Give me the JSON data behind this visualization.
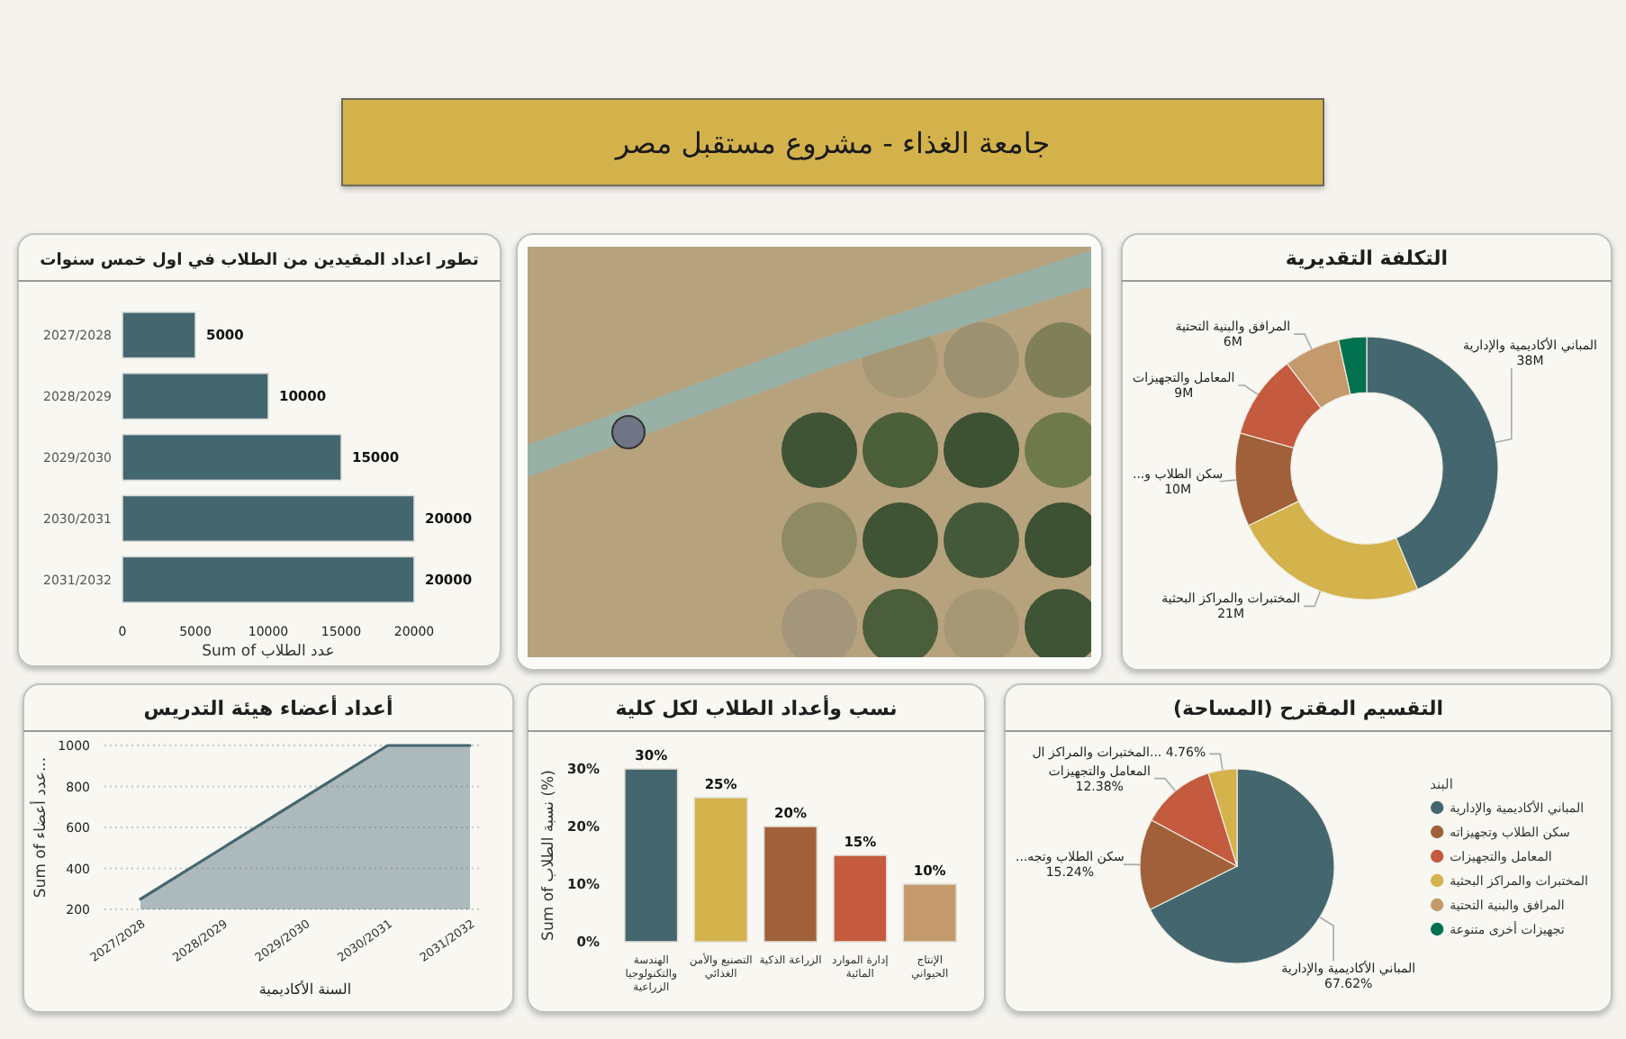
{
  "chart_data": [
    {
      "type": "other",
      "title": "جامعة الغذاء - مشروع مستقبل مصر"
    },
    {
      "type": "bar",
      "orientation": "horizontal",
      "title": "تطور اعداد المقيدين من الطلاب في اول خمس سنوات",
      "categories": [
        "2027/2028",
        "2028/2029",
        "2029/2030",
        "2030/2031",
        "2031/2032"
      ],
      "values": [
        5000,
        10000,
        15000,
        20000,
        20000
      ],
      "color": "#44676f",
      "xlim": [
        0,
        20000
      ],
      "xticks": [
        0,
        5000,
        10000,
        15000,
        20000
      ],
      "xlabel": "Sum of عدد الطلاب",
      "data_labels": true
    },
    {
      "type": "donut",
      "title": "التكلفة التقديرية",
      "categories": [
        "المباني الأكاديمية والإدارية",
        "المختبرات والمراكز البحثية",
        "سكن الطلاب و...",
        "المعامل والتجهيزات",
        "المرافق والبنية التحتية",
        null
      ],
      "values": [
        38,
        21,
        10,
        9,
        6,
        3
      ],
      "colors": [
        "#44676f",
        "#d4b24c",
        "#a0603a",
        "#c45a3e",
        "#c49a6c",
        "#00704f"
      ],
      "value_labels": [
        "38M",
        "21M",
        "10M",
        "9M",
        "6M",
        null
      ]
    },
    {
      "type": "area",
      "title": "أعداد أعضاء هيئة التدريس",
      "categories": [
        "2027/2028",
        "2028/2029",
        "2029/2030",
        "2030/2031",
        "2031/2032"
      ],
      "values": [
        250,
        500,
        750,
        1000,
        1000
      ],
      "color": "#44676f",
      "ylim": [
        200,
        1000
      ],
      "yticks": [
        200,
        400,
        600,
        800,
        1000
      ],
      "xlabel": "السنة الأكاديمية",
      "ylabel": "Sum of عدد أعضاء...",
      "grid": "y"
    },
    {
      "type": "bar",
      "title": "نسب وأعداد الطلاب لكل كلية",
      "categories": [
        "الهندسة والتكنولوجيا الزراعية",
        "التصنيع والأمن الغذائي",
        "الزراعة الذكية",
        "إدارة الموارد المائية",
        "الإنتاج الحيواني"
      ],
      "values": [
        30,
        25,
        20,
        15,
        10
      ],
      "colors": [
        "#44676f",
        "#d4b24c",
        "#a0603a",
        "#c45a3e",
        "#c49a6c"
      ],
      "ylim": [
        0,
        30
      ],
      "yticks": [
        {
          "value": 0,
          "label": "0%"
        },
        {
          "value": 10,
          "label": "10%"
        },
        {
          "value": 20,
          "label": "20%"
        },
        {
          "value": 30,
          "label": "30%"
        }
      ],
      "ylabel": "Sum of نسبة الطلاب (%)",
      "value_labels": [
        "30%",
        "25%",
        "20%",
        "15%",
        "10%"
      ]
    },
    {
      "type": "pie",
      "title": "التقسيم المقترح (المساحة)",
      "categories": [
        "المباني الأكاديمية والإدارية",
        "سكن الطلاب وتجهيزاته",
        "المعامل والتجهيزات",
        "المختبرات والمراكز البحثية",
        "المرافق والبنية التحتية",
        "تجهيزات أخرى متنوعة"
      ],
      "values": [
        67.62,
        15.24,
        12.38,
        4.76,
        0,
        0
      ],
      "colors": [
        "#44676f",
        "#a0603a",
        "#c45a3e",
        "#d4b24c",
        "#c49a6c",
        "#00704f"
      ],
      "value_labels": [
        "المباني الأكاديمية والإدارية\n67.62%",
        "سكن الطلاب وتجه...\n15.24%",
        "المعامل والتجهيزات\n12.38%",
        "المختبرات والمراكز ال... 4.76%",
        null,
        null
      ],
      "legend": "right",
      "legend_title": "البند"
    }
  ]
}
